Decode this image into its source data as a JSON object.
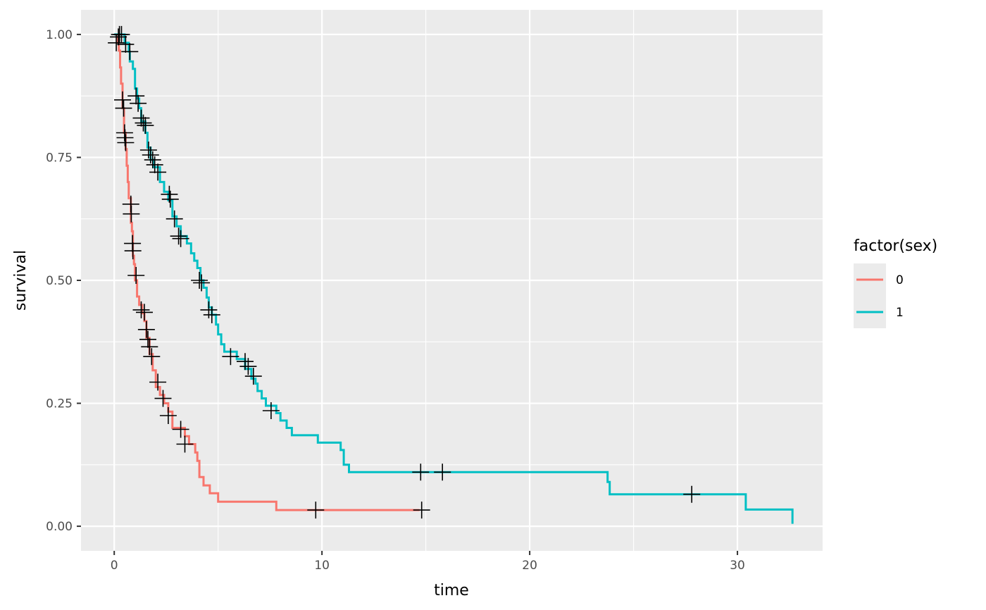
{
  "chart_data": {
    "type": "line",
    "subtype": "kaplan-meier step curve with censor marks",
    "xlabel": "time",
    "ylabel": "survival",
    "xlim": [
      -1.6,
      34.1
    ],
    "ylim": [
      -0.05,
      1.05
    ],
    "x_ticks": [
      0,
      10,
      20,
      30
    ],
    "x_tick_labels": [
      "0",
      "10",
      "20",
      "30"
    ],
    "y_ticks": [
      0,
      0.25,
      0.5,
      0.75,
      1.0
    ],
    "y_tick_labels": [
      "0.00",
      "0.25",
      "0.50",
      "0.75",
      "1.00"
    ],
    "grid": true,
    "legend": {
      "title": "factor(sex)",
      "position": "right"
    },
    "background": "#ebebeb",
    "series": [
      {
        "name": "0",
        "color": "#f8766d",
        "steps": [
          [
            0,
            1.0
          ],
          [
            0.15,
            0.983
          ],
          [
            0.22,
            0.967
          ],
          [
            0.28,
            0.933
          ],
          [
            0.33,
            0.9
          ],
          [
            0.4,
            0.85
          ],
          [
            0.47,
            0.8
          ],
          [
            0.55,
            0.767
          ],
          [
            0.6,
            0.733
          ],
          [
            0.65,
            0.7
          ],
          [
            0.7,
            0.667
          ],
          [
            0.8,
            0.617
          ],
          [
            0.85,
            0.6
          ],
          [
            0.9,
            0.55
          ],
          [
            0.95,
            0.533
          ],
          [
            1.0,
            0.5
          ],
          [
            1.1,
            0.467
          ],
          [
            1.2,
            0.45
          ],
          [
            1.35,
            0.433
          ],
          [
            1.45,
            0.417
          ],
          [
            1.55,
            0.383
          ],
          [
            1.7,
            0.35
          ],
          [
            1.85,
            0.317
          ],
          [
            2.0,
            0.283
          ],
          [
            2.2,
            0.267
          ],
          [
            2.4,
            0.25
          ],
          [
            2.6,
            0.233
          ],
          [
            2.8,
            0.2
          ],
          [
            3.0,
            0.2
          ],
          [
            3.4,
            0.183
          ],
          [
            3.6,
            0.167
          ],
          [
            3.9,
            0.15
          ],
          [
            4.0,
            0.133
          ],
          [
            4.1,
            0.1
          ],
          [
            4.3,
            0.083
          ],
          [
            4.6,
            0.067
          ],
          [
            5.0,
            0.05
          ],
          [
            7.8,
            0.033
          ],
          [
            14.7,
            0.033
          ]
        ],
        "censored": [
          [
            0.1,
            0.983
          ],
          [
            0.25,
            1.0
          ],
          [
            0.4,
            0.867
          ],
          [
            0.45,
            0.85
          ],
          [
            0.5,
            0.8
          ],
          [
            0.52,
            0.79
          ],
          [
            0.55,
            0.78
          ],
          [
            0.8,
            0.655
          ],
          [
            0.82,
            0.635
          ],
          [
            0.88,
            0.575
          ],
          [
            0.9,
            0.56
          ],
          [
            1.05,
            0.51
          ],
          [
            1.3,
            0.44
          ],
          [
            1.45,
            0.435
          ],
          [
            1.55,
            0.4
          ],
          [
            1.62,
            0.38
          ],
          [
            1.7,
            0.365
          ],
          [
            1.8,
            0.345
          ],
          [
            2.1,
            0.293
          ],
          [
            2.35,
            0.26
          ],
          [
            2.6,
            0.225
          ],
          [
            3.2,
            0.197
          ],
          [
            3.4,
            0.167
          ],
          [
            9.7,
            0.033
          ],
          [
            14.8,
            0.033
          ]
        ]
      },
      {
        "name": "1",
        "color": "#00bfc4",
        "steps": [
          [
            0,
            1.0
          ],
          [
            0.5,
            0.983
          ],
          [
            0.7,
            0.965
          ],
          [
            0.75,
            0.945
          ],
          [
            0.9,
            0.93
          ],
          [
            1.0,
            0.89
          ],
          [
            1.1,
            0.87
          ],
          [
            1.2,
            0.85
          ],
          [
            1.3,
            0.823
          ],
          [
            1.5,
            0.8
          ],
          [
            1.6,
            0.77
          ],
          [
            1.75,
            0.745
          ],
          [
            1.9,
            0.73
          ],
          [
            2.2,
            0.7
          ],
          [
            2.4,
            0.68
          ],
          [
            2.6,
            0.663
          ],
          [
            2.8,
            0.63
          ],
          [
            3.0,
            0.61
          ],
          [
            3.2,
            0.59
          ],
          [
            3.5,
            0.575
          ],
          [
            3.7,
            0.555
          ],
          [
            3.85,
            0.54
          ],
          [
            4.0,
            0.525
          ],
          [
            4.15,
            0.5
          ],
          [
            4.3,
            0.485
          ],
          [
            4.45,
            0.465
          ],
          [
            4.55,
            0.445
          ],
          [
            4.7,
            0.43
          ],
          [
            4.9,
            0.41
          ],
          [
            5.0,
            0.39
          ],
          [
            5.15,
            0.37
          ],
          [
            5.3,
            0.355
          ],
          [
            5.9,
            0.34
          ],
          [
            6.3,
            0.32
          ],
          [
            6.6,
            0.3
          ],
          [
            6.8,
            0.29
          ],
          [
            6.9,
            0.275
          ],
          [
            7.1,
            0.26
          ],
          [
            7.3,
            0.245
          ],
          [
            7.8,
            0.23
          ],
          [
            8.0,
            0.215
          ],
          [
            8.3,
            0.2
          ],
          [
            8.55,
            0.185
          ],
          [
            9.8,
            0.17
          ],
          [
            10.9,
            0.155
          ],
          [
            11.05,
            0.125
          ],
          [
            11.3,
            0.11
          ],
          [
            23.75,
            0.09
          ],
          [
            23.85,
            0.065
          ],
          [
            30.4,
            0.034
          ],
          [
            32.65,
            0.005
          ]
        ],
        "censored": [
          [
            0.2,
            0.995
          ],
          [
            0.35,
            1.0
          ],
          [
            0.55,
            0.98
          ],
          [
            0.75,
            0.965
          ],
          [
            1.05,
            0.875
          ],
          [
            1.15,
            0.86
          ],
          [
            1.3,
            0.83
          ],
          [
            1.4,
            0.82
          ],
          [
            1.5,
            0.815
          ],
          [
            1.65,
            0.765
          ],
          [
            1.75,
            0.755
          ],
          [
            1.85,
            0.745
          ],
          [
            1.95,
            0.735
          ],
          [
            2.1,
            0.72
          ],
          [
            2.65,
            0.675
          ],
          [
            2.7,
            0.665
          ],
          [
            2.9,
            0.625
          ],
          [
            3.1,
            0.59
          ],
          [
            3.2,
            0.585
          ],
          [
            4.1,
            0.5
          ],
          [
            4.2,
            0.495
          ],
          [
            4.55,
            0.44
          ],
          [
            4.7,
            0.43
          ],
          [
            5.6,
            0.345
          ],
          [
            6.3,
            0.335
          ],
          [
            6.45,
            0.325
          ],
          [
            6.7,
            0.305
          ],
          [
            7.55,
            0.235
          ],
          [
            14.75,
            0.11
          ],
          [
            15.8,
            0.11
          ],
          [
            27.8,
            0.065
          ]
        ]
      }
    ]
  }
}
